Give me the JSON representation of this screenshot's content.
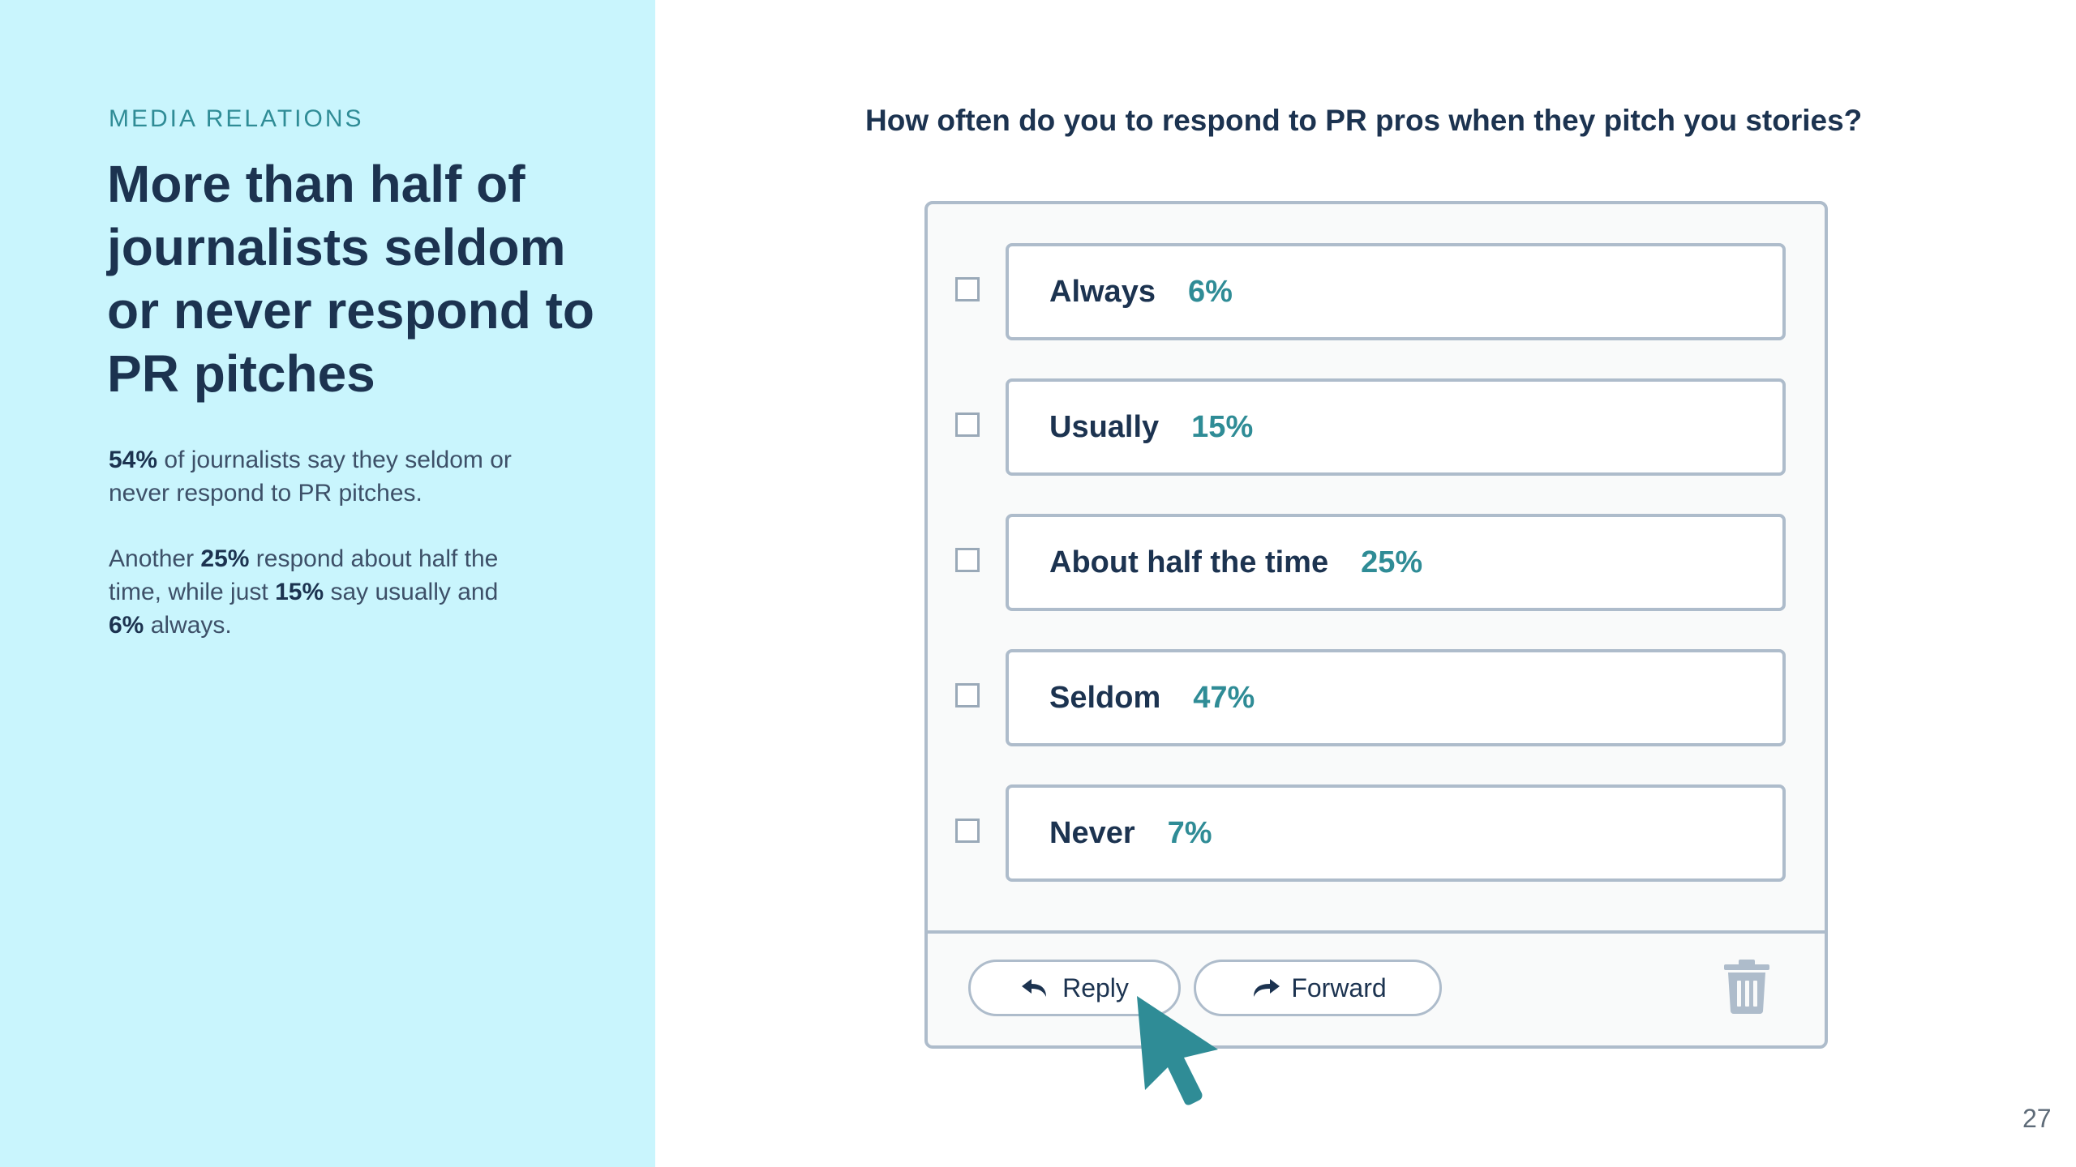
{
  "section": {
    "eyebrow": "MEDIA RELATIONS",
    "headline": "More than half of journalists seldom or never respond to PR pitches"
  },
  "summary": {
    "p1": {
      "stat": "54%",
      "text": " of journalists say they seldom or never respond to PR pitches."
    },
    "p2": {
      "prefix": "Another ",
      "stat_half": "25%",
      "mid": " respond about half the time, while just ",
      "stat_usually": "15%",
      "mid2": " say usually and ",
      "stat_always": "6%",
      "suffix": " always."
    }
  },
  "poll": {
    "question": "How often do you to respond to PR pros when they pitch you stories?",
    "options": [
      {
        "label": "Always",
        "percent": "6%"
      },
      {
        "label": "Usually",
        "percent": "15%"
      },
      {
        "label": "About half the time",
        "percent": "25%"
      },
      {
        "label": "Seldom",
        "percent": "47%"
      },
      {
        "label": "Never",
        "percent": "7%"
      }
    ],
    "actions": {
      "reply": "Reply",
      "forward": "Forward"
    }
  },
  "page_number": "27",
  "colors": {
    "left_panel_bg": "#c9f5fd",
    "navy": "#1c3350",
    "teal": "#2f8c96",
    "border": "#aebccb"
  }
}
